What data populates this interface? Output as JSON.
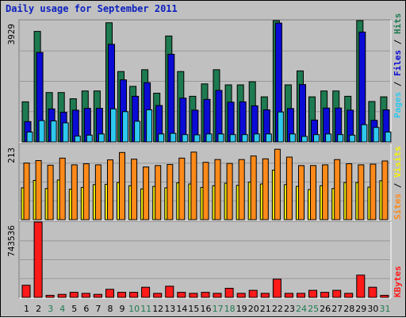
{
  "title": "Daily usage for September 2011",
  "colors": {
    "background": "#c0c0c0",
    "hits": "#1e7a50",
    "files": "#0b0bd6",
    "pages": "#2ec8ee",
    "visits": "#f7f20a",
    "sites": "#ff8a1a",
    "kbytes": "#ff1a1a",
    "weekend_label": "#1e7a50"
  },
  "chart_data": [
    {
      "type": "bar",
      "panel": "hits-files-pages",
      "ylim": [
        0,
        3929
      ],
      "tick_label": "3929",
      "right_labels": [
        "Pages",
        "Files",
        "Hits"
      ],
      "x": [
        1,
        2,
        3,
        4,
        5,
        6,
        7,
        8,
        9,
        10,
        11,
        12,
        13,
        14,
        15,
        16,
        17,
        18,
        19,
        20,
        21,
        22,
        23,
        24,
        25,
        26,
        27,
        28,
        29,
        30,
        31
      ],
      "series": [
        {
          "name": "Hits",
          "values": [
            1300,
            3580,
            1600,
            1600,
            1400,
            1650,
            1650,
            3860,
            2280,
            1800,
            2340,
            1580,
            3430,
            2280,
            1480,
            1880,
            2340,
            1850,
            1850,
            1950,
            1460,
            3929,
            1850,
            2300,
            1460,
            1650,
            1650,
            1480,
            3970,
            1310,
            1460
          ]
        },
        {
          "name": "Files",
          "values": [
            660,
            2900,
            1070,
            960,
            1030,
            1090,
            1090,
            3160,
            2010,
            1480,
            1920,
            1180,
            2840,
            1420,
            1030,
            1380,
            1670,
            1290,
            1300,
            1170,
            1040,
            3850,
            1080,
            1860,
            710,
            1100,
            1100,
            1030,
            3560,
            700,
            1040
          ]
        },
        {
          "name": "Pages",
          "values": [
            320,
            690,
            680,
            620,
            190,
            220,
            260,
            1070,
            980,
            670,
            1040,
            260,
            280,
            240,
            230,
            260,
            260,
            240,
            240,
            260,
            260,
            970,
            260,
            180,
            240,
            260,
            240,
            220,
            560,
            470,
            320
          ]
        }
      ]
    },
    {
      "type": "bar",
      "panel": "visits-sites",
      "ylim": [
        0,
        213
      ],
      "tick_label": "213",
      "right_labels": [
        "Sites",
        "Visits"
      ],
      "x": [
        1,
        2,
        3,
        4,
        5,
        6,
        7,
        8,
        9,
        10,
        11,
        12,
        13,
        14,
        15,
        16,
        17,
        18,
        19,
        20,
        21,
        22,
        23,
        24,
        25,
        26,
        27,
        28,
        29,
        30,
        31
      ],
      "series": [
        {
          "name": "Sites",
          "values": [
            160,
            167,
            154,
            174,
            155,
            158,
            155,
            169,
            190,
            171,
            149,
            153,
            156,
            174,
            191,
            162,
            170,
            159,
            170,
            180,
            172,
            199,
            177,
            153,
            153,
            155,
            170,
            158,
            155,
            157,
            166
          ]
        },
        {
          "name": "Visits",
          "values": [
            90,
            111,
            88,
            112,
            86,
            91,
            99,
            100,
            105,
            96,
            87,
            94,
            90,
            104,
            101,
            91,
            96,
            103,
            97,
            106,
            101,
            140,
            99,
            94,
            85,
            96,
            88,
            105,
            105,
            92,
            110
          ]
        }
      ]
    },
    {
      "type": "bar",
      "panel": "kbytes",
      "ylim": [
        0,
        743536
      ],
      "tick_label": "743536",
      "right_labels": [
        "KBytes"
      ],
      "x": [
        1,
        2,
        3,
        4,
        5,
        6,
        7,
        8,
        9,
        10,
        11,
        12,
        13,
        14,
        15,
        16,
        17,
        18,
        19,
        20,
        21,
        22,
        23,
        24,
        25,
        26,
        27,
        28,
        29,
        30,
        31
      ],
      "series": [
        {
          "name": "KBytes",
          "values": [
            120000,
            743536,
            20000,
            30000,
            50000,
            40000,
            30000,
            80000,
            50000,
            50000,
            100000,
            40000,
            110000,
            50000,
            40000,
            50000,
            40000,
            90000,
            40000,
            70000,
            40000,
            180000,
            40000,
            40000,
            70000,
            50000,
            70000,
            40000,
            220000,
            100000,
            20000
          ]
        }
      ]
    }
  ],
  "x_labels": [
    "1",
    "2",
    "3",
    "4",
    "5",
    "6",
    "7",
    "8",
    "9",
    "10",
    "11",
    "12",
    "13",
    "14",
    "15",
    "16",
    "17",
    "18",
    "19",
    "20",
    "21",
    "22",
    "23",
    "24",
    "25",
    "26",
    "27",
    "28",
    "29",
    "30",
    "31"
  ],
  "weekend_days": [
    3,
    4,
    10,
    11,
    17,
    18,
    24,
    25,
    31
  ]
}
